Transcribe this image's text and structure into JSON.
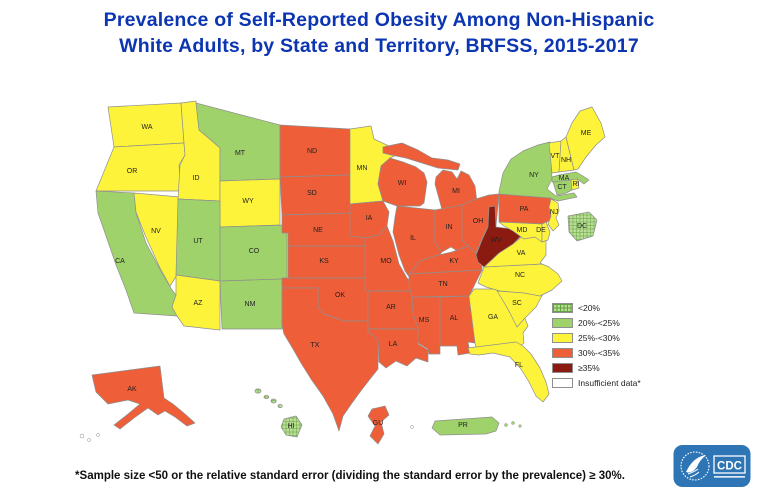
{
  "title": {
    "line1": "Prevalence of Self-Reported Obesity Among Non-Hispanic",
    "line2": "White Adults, by State and Territory, BRFSS, 2015-2017"
  },
  "colors": {
    "title": "#0c35b2",
    "border": "#8f8f8f",
    "label": "#222222",
    "lt20": "#bbdd95",
    "lt20_hatch_line": "#61a13f",
    "c20_25": "#9fd26b",
    "c25_30": "#fdf33a",
    "c30_35": "#ee5e38",
    "ge35": "#8b1b11",
    "insufficient": "#ffffff",
    "cdc_blue": "#2e75b5"
  },
  "legend": {
    "items": [
      {
        "key": "lt20",
        "label": "<20%"
      },
      {
        "key": "c20_25",
        "label": "20%-<25%"
      },
      {
        "key": "c25_30",
        "label": "25%-<30%"
      },
      {
        "key": "c30_35",
        "label": "30%-<35%"
      },
      {
        "key": "ge35",
        "label": "≥35%"
      },
      {
        "key": "insufficient",
        "label": "Insufficient data*"
      }
    ]
  },
  "footnote": "*Sample size <50 or the relative standard error (dividing the standard error by the prevalence) ≥ 30%.",
  "cdc_logo_text": "CDC",
  "chart_data": {
    "type": "choropleth",
    "title": "Prevalence of Self-Reported Obesity Among Non-Hispanic White Adults, by State and Territory, BRFSS, 2015-2017",
    "legend_categories": [
      "<20%",
      "20%-<25%",
      "25%-<30%",
      "30%-<35%",
      "≥35%",
      "Insufficient data*"
    ],
    "states": [
      {
        "abbr": "WA",
        "category_key": "c25_30",
        "value_range": "25%-<30%"
      },
      {
        "abbr": "OR",
        "category_key": "c25_30",
        "value_range": "25%-<30%"
      },
      {
        "abbr": "CA",
        "category_key": "c20_25",
        "value_range": "20%-<25%"
      },
      {
        "abbr": "NV",
        "category_key": "c25_30",
        "value_range": "25%-<30%"
      },
      {
        "abbr": "ID",
        "category_key": "c25_30",
        "value_range": "25%-<30%"
      },
      {
        "abbr": "MT",
        "category_key": "c20_25",
        "value_range": "20%-<25%"
      },
      {
        "abbr": "WY",
        "category_key": "c25_30",
        "value_range": "25%-<30%"
      },
      {
        "abbr": "UT",
        "category_key": "c20_25",
        "value_range": "20%-<25%"
      },
      {
        "abbr": "CO",
        "category_key": "c20_25",
        "value_range": "20%-<25%"
      },
      {
        "abbr": "AZ",
        "category_key": "c25_30",
        "value_range": "25%-<30%"
      },
      {
        "abbr": "NM",
        "category_key": "c20_25",
        "value_range": "20%-<25%"
      },
      {
        "abbr": "ND",
        "category_key": "c30_35",
        "value_range": "30%-<35%"
      },
      {
        "abbr": "SD",
        "category_key": "c30_35",
        "value_range": "30%-<35%"
      },
      {
        "abbr": "NE",
        "category_key": "c30_35",
        "value_range": "30%-<35%"
      },
      {
        "abbr": "KS",
        "category_key": "c30_35",
        "value_range": "30%-<35%"
      },
      {
        "abbr": "OK",
        "category_key": "c30_35",
        "value_range": "30%-<35%"
      },
      {
        "abbr": "TX",
        "category_key": "c30_35",
        "value_range": "30%-<35%"
      },
      {
        "abbr": "MN",
        "category_key": "c25_30",
        "value_range": "25%-<30%"
      },
      {
        "abbr": "IA",
        "category_key": "c30_35",
        "value_range": "30%-<35%"
      },
      {
        "abbr": "MO",
        "category_key": "c30_35",
        "value_range": "30%-<35%"
      },
      {
        "abbr": "AR",
        "category_key": "c30_35",
        "value_range": "30%-<35%"
      },
      {
        "abbr": "LA",
        "category_key": "c30_35",
        "value_range": "30%-<35%"
      },
      {
        "abbr": "WI",
        "category_key": "c30_35",
        "value_range": "30%-<35%"
      },
      {
        "abbr": "MI",
        "category_key": "c30_35",
        "value_range": "30%-<35%"
      },
      {
        "abbr": "IL",
        "category_key": "c30_35",
        "value_range": "30%-<35%"
      },
      {
        "abbr": "IN",
        "category_key": "c30_35",
        "value_range": "30%-<35%"
      },
      {
        "abbr": "OH",
        "category_key": "c30_35",
        "value_range": "30%-<35%"
      },
      {
        "abbr": "KY",
        "category_key": "c30_35",
        "value_range": "30%-<35%"
      },
      {
        "abbr": "TN",
        "category_key": "c30_35",
        "value_range": "30%-<35%"
      },
      {
        "abbr": "MS",
        "category_key": "c30_35",
        "value_range": "30%-<35%"
      },
      {
        "abbr": "AL",
        "category_key": "c30_35",
        "value_range": "30%-<35%"
      },
      {
        "abbr": "GA",
        "category_key": "c25_30",
        "value_range": "25%-<30%"
      },
      {
        "abbr": "FL",
        "category_key": "c25_30",
        "value_range": "25%-<30%"
      },
      {
        "abbr": "SC",
        "category_key": "c25_30",
        "value_range": "25%-<30%"
      },
      {
        "abbr": "NC",
        "category_key": "c25_30",
        "value_range": "25%-<30%"
      },
      {
        "abbr": "VA",
        "category_key": "c25_30",
        "value_range": "25%-<30%"
      },
      {
        "abbr": "WV",
        "category_key": "ge35",
        "value_range": "≥35%"
      },
      {
        "abbr": "PA",
        "category_key": "c30_35",
        "value_range": "30%-<35%"
      },
      {
        "abbr": "NY",
        "category_key": "c20_25",
        "value_range": "20%-<25%"
      },
      {
        "abbr": "NJ",
        "category_key": "c25_30",
        "value_range": "25%-<30%"
      },
      {
        "abbr": "MD",
        "category_key": "c25_30",
        "value_range": "25%-<30%"
      },
      {
        "abbr": "DE",
        "category_key": "c25_30",
        "value_range": "25%-<30%"
      },
      {
        "abbr": "DC",
        "category_key": "lt20",
        "value_range": "<20%"
      },
      {
        "abbr": "VT",
        "category_key": "c25_30",
        "value_range": "25%-<30%"
      },
      {
        "abbr": "NH",
        "category_key": "c25_30",
        "value_range": "25%-<30%"
      },
      {
        "abbr": "ME",
        "category_key": "c25_30",
        "value_range": "25%-<30%"
      },
      {
        "abbr": "MA",
        "category_key": "c20_25",
        "value_range": "20%-<25%"
      },
      {
        "abbr": "CT",
        "category_key": "c20_25",
        "value_range": "20%-<25%"
      },
      {
        "abbr": "RI",
        "category_key": "c25_30",
        "value_range": "25%-<30%"
      },
      {
        "abbr": "AK",
        "category_key": "c30_35",
        "value_range": "30%-<35%"
      },
      {
        "abbr": "HI",
        "category_key": "lt20",
        "value_range": "<20%"
      },
      {
        "abbr": "GU",
        "category_key": "c30_35",
        "value_range": "30%-<35%"
      },
      {
        "abbr": "PR",
        "category_key": "c20_25",
        "value_range": "20%-<25%"
      }
    ]
  }
}
